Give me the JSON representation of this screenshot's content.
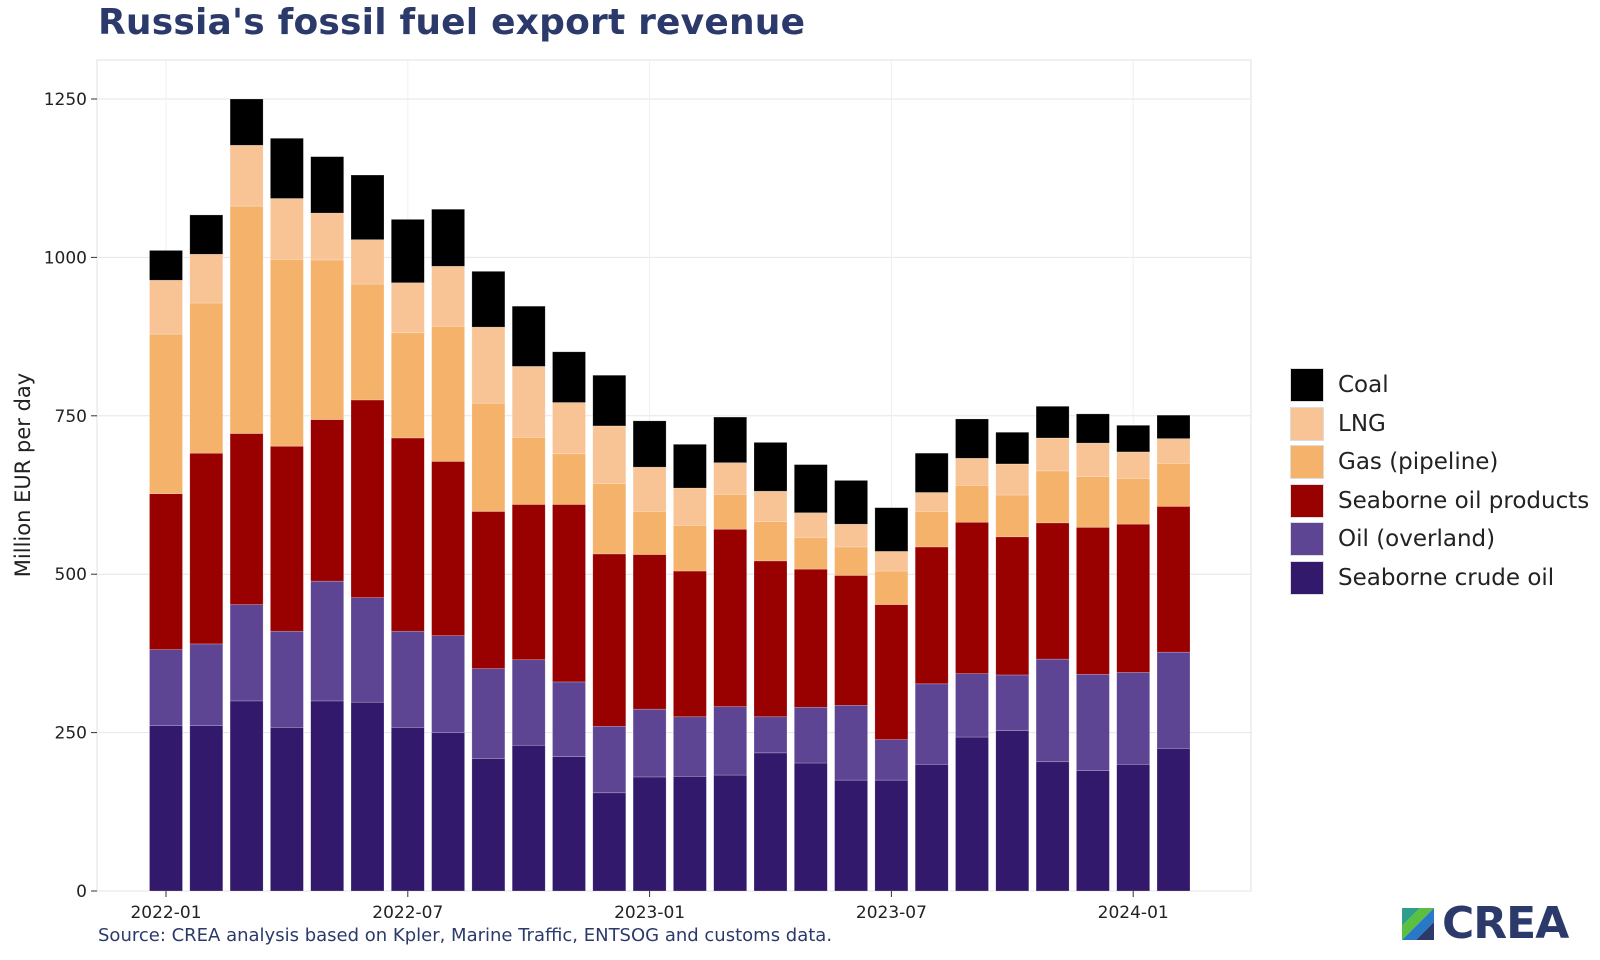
{
  "title": "Russia's fossil fuel export revenue",
  "source": "Source: CREA analysis based on Kpler, Marine Traffic, ENTSOG and customs data.",
  "logo_text": "CREA",
  "chart_data": {
    "type": "bar",
    "stacked": true,
    "title": "Russia's fossil fuel export revenue",
    "xlabel": "",
    "ylabel": "Million EUR per day",
    "ylim": [
      0,
      1300
    ],
    "yticks": [
      0,
      250,
      500,
      750,
      1000,
      1250
    ],
    "xtick_labels": [
      "2022-01",
      "2022-07",
      "2023-01",
      "2023-07",
      "2024-01"
    ],
    "xtick_categories": [
      "2022-01",
      "2022-07",
      "2023-01",
      "2023-07",
      "2024-01"
    ],
    "grid": true,
    "legend_position": "right",
    "categories": [
      "2022-01",
      "2022-02",
      "2022-03",
      "2022-04",
      "2022-05",
      "2022-06",
      "2022-07",
      "2022-08",
      "2022-09",
      "2022-10",
      "2022-11",
      "2022-12",
      "2023-01",
      "2023-02",
      "2023-03",
      "2023-04",
      "2023-05",
      "2023-06",
      "2023-07",
      "2023-08",
      "2023-09",
      "2023-10",
      "2023-11",
      "2023-12",
      "2024-01",
      "2024-02"
    ],
    "series": [
      {
        "name": "Seaborne crude oil",
        "color": "#33196b",
        "values": [
          261,
          261,
          300,
          258,
          300,
          298,
          258,
          250,
          209,
          230,
          212,
          155,
          180,
          181,
          183,
          218,
          202,
          175,
          175,
          200,
          243,
          253,
          204,
          190,
          200,
          225
        ]
      },
      {
        "name": "Oil (overland)",
        "color": "#5e4594",
        "values": [
          120,
          129,
          152,
          152,
          189,
          165,
          152,
          153,
          142,
          135,
          118,
          105,
          107,
          94,
          108,
          57,
          88,
          118,
          64,
          127,
          100,
          88,
          162,
          152,
          145,
          152
        ]
      },
      {
        "name": "Seaborne oil products",
        "color": "#990000",
        "values": [
          246,
          301,
          270,
          292,
          255,
          312,
          305,
          275,
          248,
          245,
          280,
          272,
          244,
          230,
          280,
          246,
          218,
          205,
          213,
          216,
          239,
          218,
          215,
          232,
          234,
          230
        ]
      },
      {
        "name": "Gas (pipeline)",
        "color": "#f5b26b",
        "values": [
          252,
          237,
          359,
          295,
          252,
          183,
          166,
          213,
          171,
          106,
          80,
          111,
          68,
          72,
          55,
          62,
          50,
          45,
          53,
          56,
          58,
          66,
          82,
          80,
          72,
          68
        ]
      },
      {
        "name": "LNG",
        "color": "#f8c496",
        "values": [
          85,
          77,
          96,
          96,
          74,
          70,
          79,
          95,
          120,
          112,
          81,
          91,
          70,
          59,
          50,
          48,
          39,
          36,
          31,
          30,
          43,
          49,
          52,
          53,
          42,
          39
        ]
      },
      {
        "name": "Coal",
        "color": "#000000",
        "values": [
          47,
          62,
          73,
          95,
          89,
          102,
          100,
          90,
          88,
          95,
          80,
          80,
          73,
          69,
          72,
          77,
          76,
          69,
          69,
          62,
          62,
          50,
          50,
          46,
          42,
          37
        ]
      }
    ]
  }
}
